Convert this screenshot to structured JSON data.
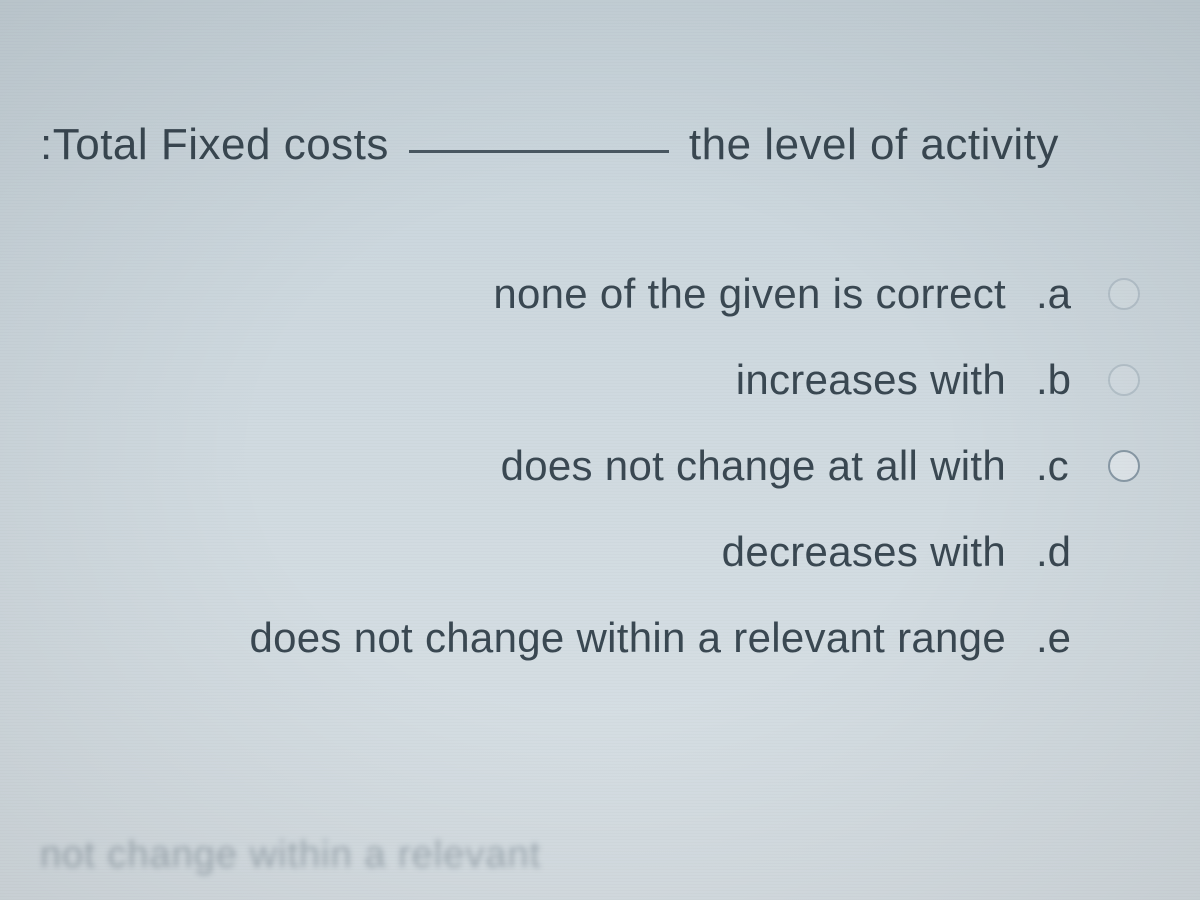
{
  "question": {
    "prefix": ":Total Fixed costs",
    "suffix": "the level of activity"
  },
  "options": [
    {
      "text": "none of the given is correct",
      "label": ".a",
      "has_radio": true,
      "radio_faded": true,
      "selected": false
    },
    {
      "text": "increases with",
      "label": ".b",
      "has_radio": true,
      "radio_faded": true,
      "selected": false
    },
    {
      "text": "does not change at all with",
      "label": ".c",
      "has_radio": true,
      "radio_faded": false,
      "selected": false
    },
    {
      "text": "decreases with",
      "label": ".d",
      "has_radio": false,
      "radio_faded": false,
      "selected": false
    },
    {
      "text": "does not change within a relevant range",
      "label": ".e",
      "has_radio": false,
      "radio_faded": false,
      "selected": false
    }
  ],
  "bottom_blur_text": "not change within a relevant",
  "colors": {
    "text": "#3a4852",
    "background_top": "#c8d4db",
    "background_bottom": "#d8e0e5",
    "radio_border": "#8a9ba8",
    "blur_text": "#6b7a85"
  }
}
